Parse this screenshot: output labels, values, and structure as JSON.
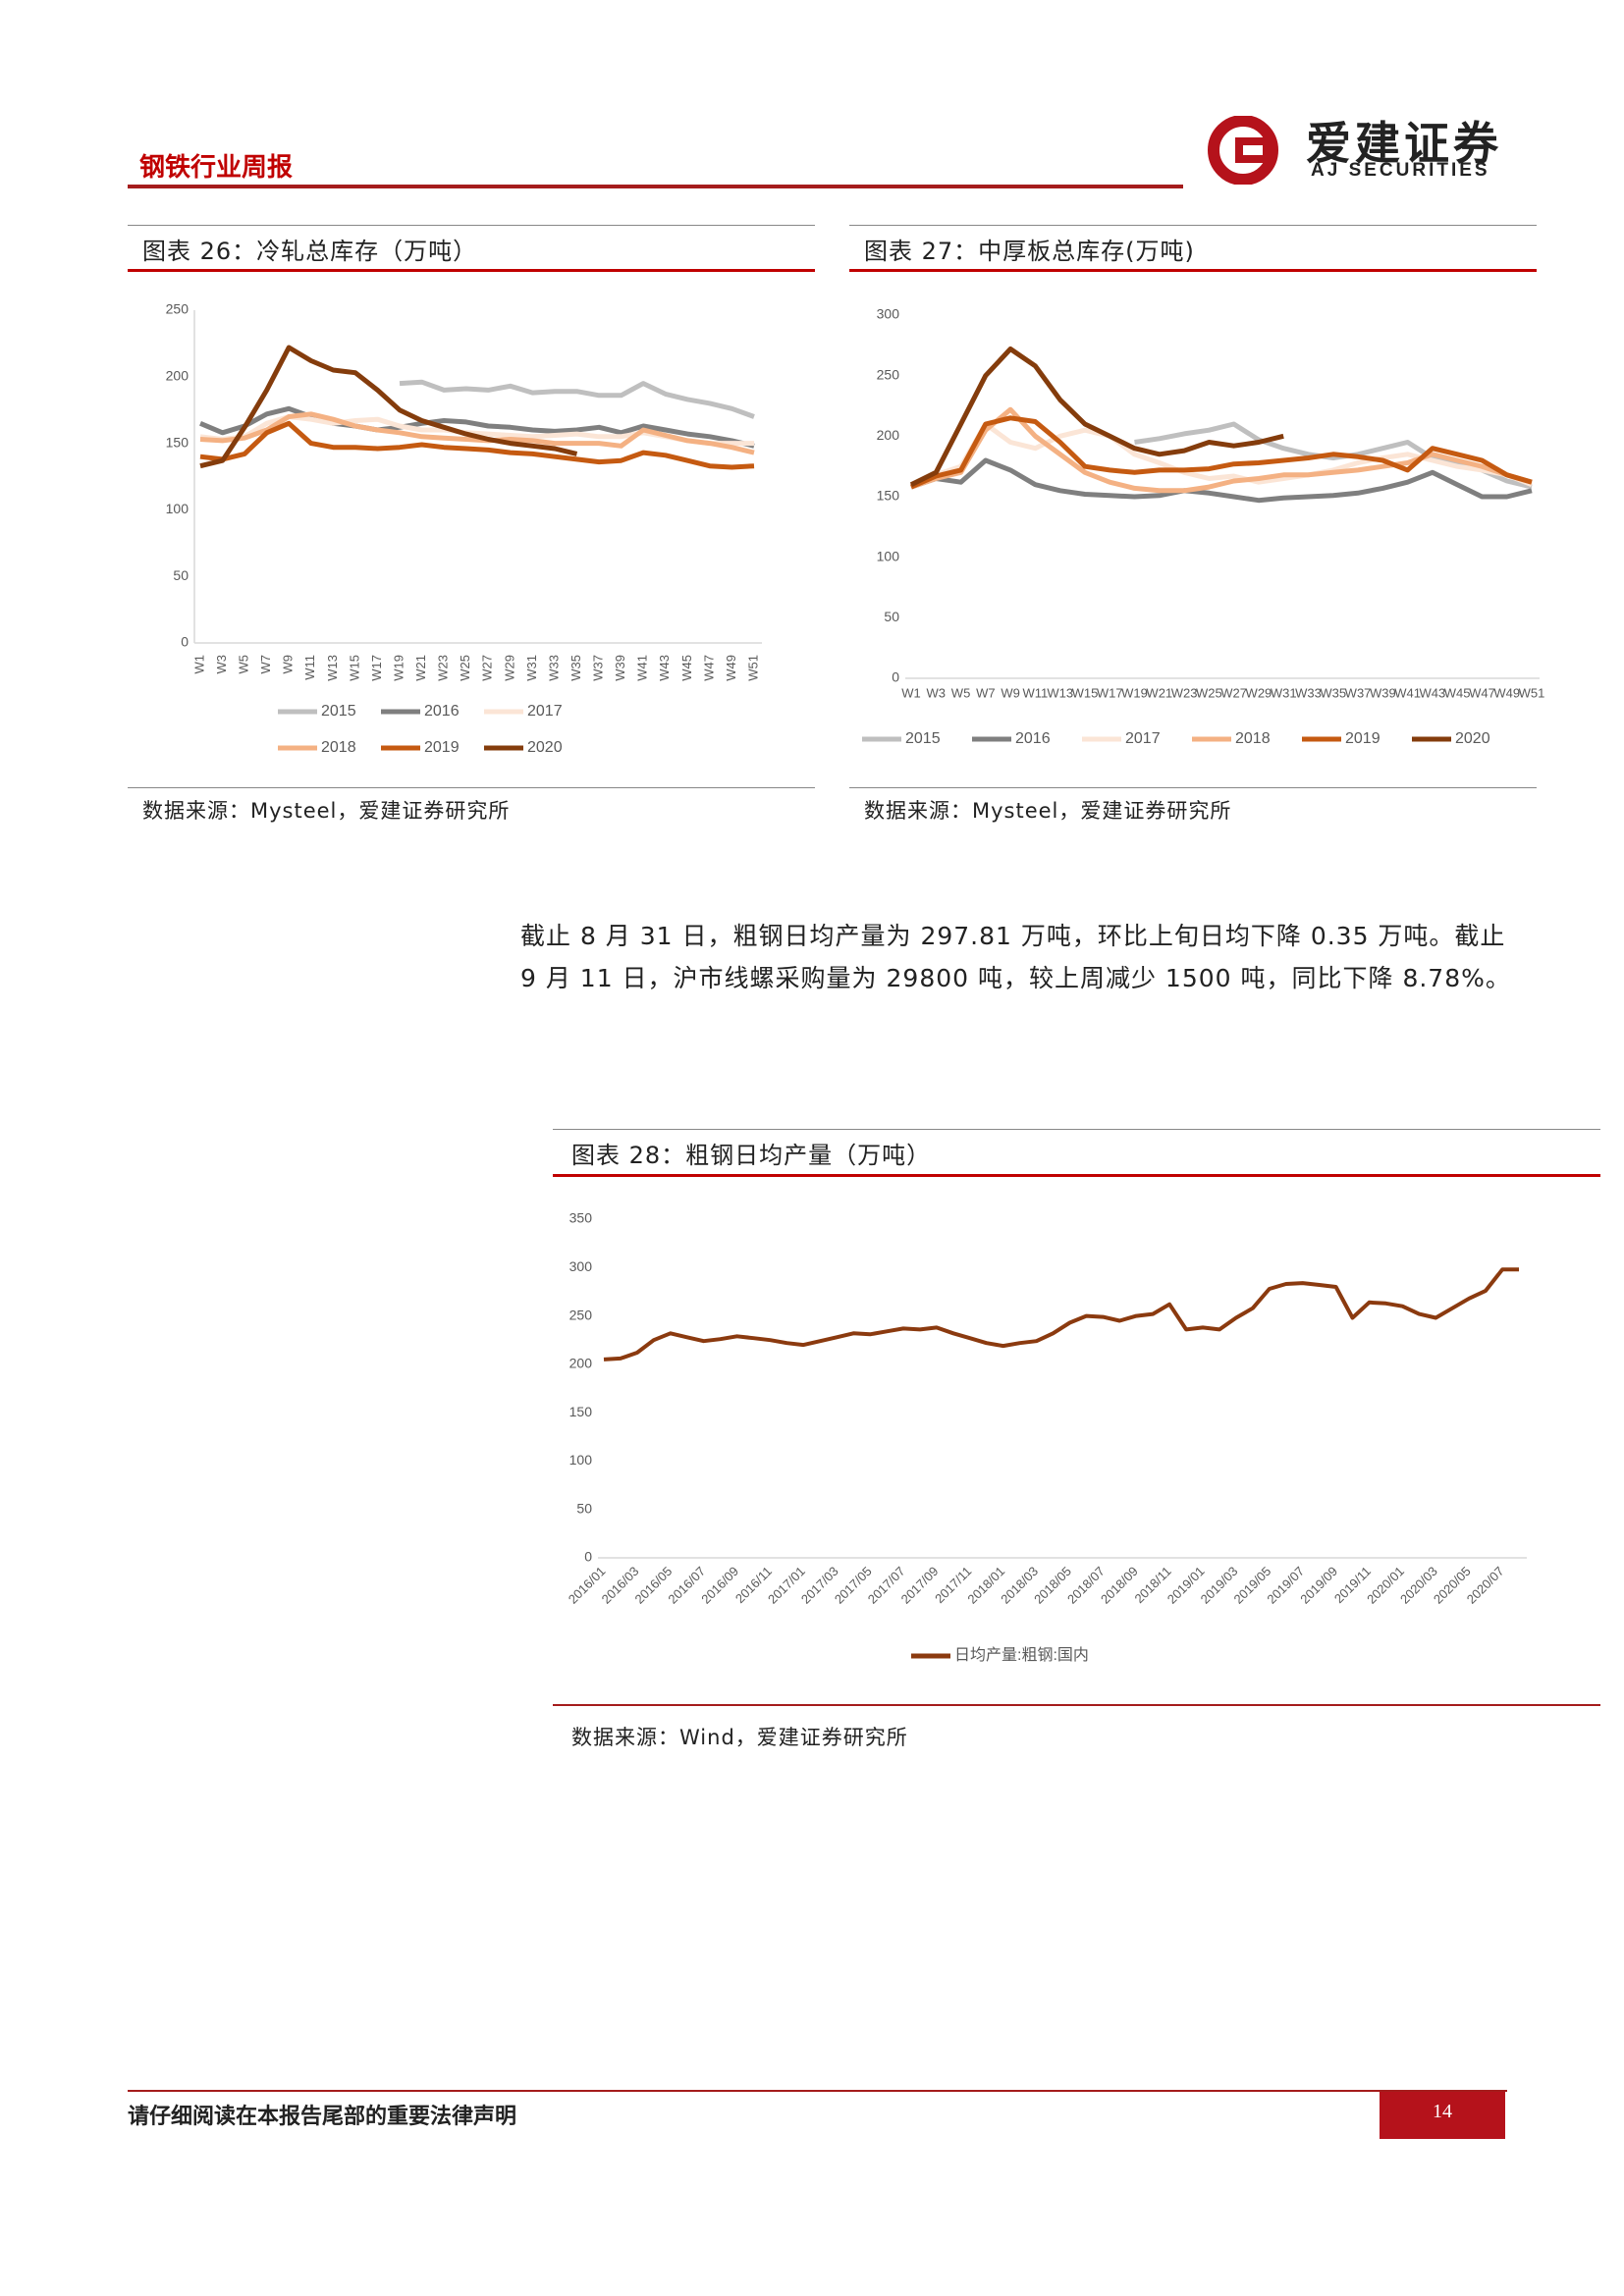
{
  "header": {
    "title": "钢铁行业周报",
    "logo_cn": "爱建证券",
    "logo_en": "AJ SECURITIES"
  },
  "chart_data": [
    {
      "type": "line",
      "title": "图表 26：冷轧总库存（万吨）",
      "source": "数据来源：Mysteel，爱建证券研究所",
      "categories": [
        "W1",
        "W3",
        "W5",
        "W7",
        "W9",
        "W11",
        "W13",
        "W15",
        "W17",
        "W19",
        "W21",
        "W23",
        "W25",
        "W27",
        "W29",
        "W31",
        "W33",
        "W35",
        "W37",
        "W39",
        "W41",
        "W43",
        "W45",
        "W47",
        "W49",
        "W51"
      ],
      "ylim": [
        0,
        250
      ],
      "yticks": [
        0,
        50,
        100,
        150,
        200,
        250
      ],
      "series": [
        {
          "name": "2015",
          "color": "#bfbfbf",
          "values": [
            null,
            null,
            null,
            null,
            null,
            null,
            null,
            null,
            null,
            195,
            196,
            190,
            191,
            190,
            193,
            188,
            189,
            189,
            186,
            186,
            195,
            187,
            183,
            180,
            176,
            170
          ]
        },
        {
          "name": "2016",
          "color": "#7f7f7f",
          "values": [
            165,
            158,
            163,
            172,
            176,
            170,
            165,
            163,
            160,
            162,
            165,
            167,
            166,
            163,
            162,
            160,
            159,
            160,
            162,
            158,
            163,
            160,
            157,
            155,
            152,
            148
          ]
        },
        {
          "name": "2017",
          "color": "#fbe5d6",
          "values": [
            155,
            153,
            155,
            165,
            170,
            168,
            165,
            167,
            168,
            163,
            160,
            160,
            158,
            157,
            156,
            155,
            156,
            157,
            155,
            155,
            158,
            155,
            152,
            150,
            150,
            150
          ]
        },
        {
          "name": "2018",
          "color": "#f4b183",
          "values": [
            153,
            152,
            154,
            160,
            170,
            172,
            168,
            163,
            160,
            158,
            155,
            154,
            153,
            152,
            153,
            152,
            150,
            150,
            150,
            148,
            160,
            156,
            152,
            150,
            147,
            143
          ]
        },
        {
          "name": "2019",
          "color": "#c55a11",
          "values": [
            140,
            138,
            142,
            158,
            165,
            150,
            147,
            147,
            146,
            147,
            149,
            147,
            146,
            145,
            143,
            142,
            140,
            138,
            136,
            137,
            143,
            141,
            137,
            133,
            132,
            133
          ]
        },
        {
          "name": "2020",
          "color": "#843c0c",
          "values": [
            133,
            137,
            162,
            190,
            222,
            212,
            205,
            203,
            190,
            175,
            167,
            162,
            157,
            153,
            150,
            148,
            146,
            142,
            null,
            null,
            null,
            null,
            null,
            null,
            null,
            null
          ]
        }
      ]
    },
    {
      "type": "line",
      "title": "图表 27：中厚板总库存(万吨)",
      "source": "数据来源：Mysteel，爱建证券研究所",
      "categories": [
        "W1",
        "W3",
        "W5",
        "W7",
        "W9",
        "W11",
        "W13",
        "W15",
        "W17",
        "W19",
        "W21",
        "W23",
        "W25",
        "W27",
        "W29",
        "W31",
        "W33",
        "W35",
        "W37",
        "W39",
        "W41",
        "W43",
        "W45",
        "W47",
        "W49",
        "W51"
      ],
      "ylim": [
        0,
        300
      ],
      "yticks": [
        0,
        50,
        100,
        150,
        200,
        250,
        300
      ],
      "series": [
        {
          "name": "2015",
          "color": "#bfbfbf",
          "values": [
            null,
            null,
            null,
            null,
            null,
            null,
            null,
            null,
            null,
            195,
            198,
            202,
            205,
            210,
            197,
            190,
            185,
            182,
            185,
            190,
            195,
            182,
            178,
            172,
            163,
            158
          ]
        },
        {
          "name": "2016",
          "color": "#7f7f7f",
          "values": [
            158,
            165,
            162,
            180,
            172,
            160,
            155,
            152,
            151,
            150,
            151,
            155,
            153,
            150,
            147,
            149,
            150,
            151,
            153,
            157,
            162,
            170,
            160,
            150,
            150,
            155
          ]
        },
        {
          "name": "2017",
          "color": "#fbe5d6",
          "values": [
            160,
            168,
            175,
            210,
            195,
            190,
            200,
            205,
            200,
            185,
            178,
            170,
            165,
            167,
            162,
            165,
            168,
            172,
            178,
            182,
            185,
            180,
            175,
            172,
            168,
            160
          ]
        },
        {
          "name": "2018",
          "color": "#f4b183",
          "values": [
            158,
            165,
            170,
            205,
            222,
            200,
            185,
            170,
            162,
            157,
            155,
            155,
            158,
            163,
            165,
            168,
            168,
            170,
            172,
            175,
            178,
            185,
            180,
            175,
            168,
            162
          ]
        },
        {
          "name": "2019",
          "color": "#c55a11",
          "values": [
            158,
            167,
            172,
            210,
            215,
            212,
            195,
            175,
            172,
            170,
            172,
            172,
            173,
            177,
            178,
            180,
            182,
            185,
            183,
            180,
            172,
            190,
            185,
            180,
            168,
            162
          ]
        },
        {
          "name": "2020",
          "color": "#843c0c",
          "values": [
            160,
            170,
            210,
            250,
            272,
            258,
            230,
            210,
            200,
            190,
            185,
            188,
            195,
            192,
            195,
            200,
            null,
            null,
            null,
            null,
            null,
            null,
            null,
            null,
            null,
            null
          ]
        }
      ]
    },
    {
      "type": "line",
      "title": "图表 28：粗钢日均产量（万吨）",
      "source": "数据来源：Wind，爱建证券研究所",
      "categories": [
        "2016/01",
        null,
        "2016/03",
        null,
        "2016/05",
        null,
        "2016/07",
        null,
        "2016/09",
        null,
        "2016/11",
        null,
        "2017/01",
        null,
        "2017/03",
        null,
        "2017/05",
        null,
        "2017/07",
        null,
        "2017/09",
        null,
        "2017/11",
        null,
        "2018/01",
        null,
        "2018/03",
        null,
        "2018/05",
        null,
        "2018/07",
        null,
        "2018/09",
        null,
        "2018/11",
        null,
        "2019/01",
        null,
        "2019/03",
        null,
        "2019/05",
        null,
        "2019/07",
        null,
        "2019/09",
        null,
        "2019/11",
        null,
        "2020/01",
        null,
        "2020/03",
        null,
        "2020/05",
        null,
        "2020/07",
        null
      ],
      "ylim": [
        0,
        350
      ],
      "yticks": [
        0,
        50,
        100,
        150,
        200,
        250,
        300,
        350
      ],
      "series": [
        {
          "name": "日均产量:粗钢:国内",
          "color": "#8b3a0f",
          "values": [
            205,
            206,
            212,
            225,
            232,
            228,
            224,
            226,
            229,
            227,
            225,
            222,
            220,
            224,
            228,
            232,
            231,
            234,
            237,
            236,
            238,
            232,
            227,
            222,
            219,
            222,
            224,
            232,
            243,
            250,
            249,
            245,
            250,
            252,
            262,
            236,
            238,
            236,
            248,
            258,
            278,
            283,
            284,
            282,
            280,
            248,
            264,
            263,
            260,
            252,
            248,
            258,
            268,
            276,
            298,
            298
          ]
        }
      ]
    }
  ],
  "body": {
    "paragraph": "截止 8 月 31 日，粗钢日均产量为 297.81 万吨，环比上旬日均下降 0.35 万吨。截止 9 月 11 日，沪市线螺采购量为 29800 吨，较上周减少 1500 吨，同比下降 8.78%。"
  },
  "footer": {
    "notice": "请仔细阅读在本报告尾部的重要法律声明",
    "page": "14"
  }
}
